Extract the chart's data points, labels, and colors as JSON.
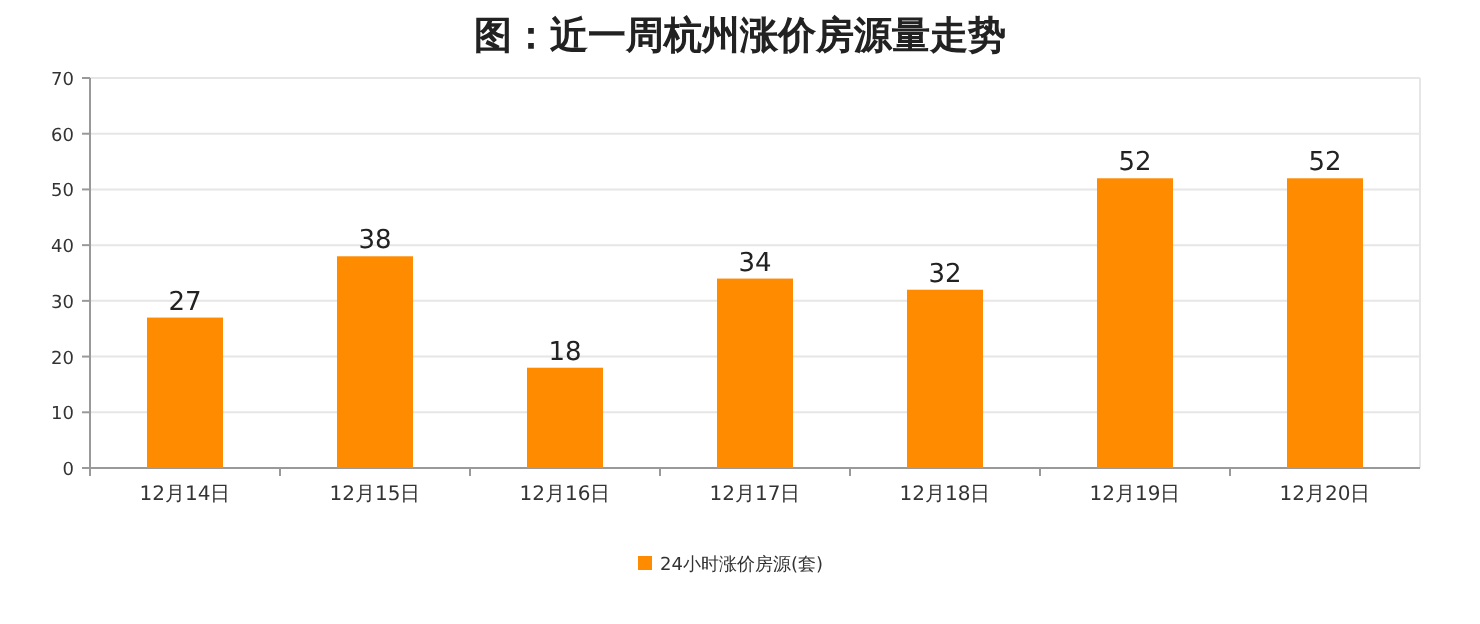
{
  "chart_data": {
    "type": "bar",
    "title": "图：近一周杭州涨价房源量走势",
    "categories": [
      "12月14日",
      "12月15日",
      "12月16日",
      "12月17日",
      "12月18日",
      "12月19日",
      "12月20日"
    ],
    "series": [
      {
        "name": "24小时涨价房源(套)",
        "color": "#ff8c00",
        "values": [
          27,
          38,
          18,
          34,
          32,
          52,
          52
        ]
      }
    ],
    "ylim": [
      0,
      70
    ],
    "yticks": [
      0,
      10,
      20,
      30,
      40,
      50,
      60,
      70
    ],
    "grid": "y",
    "legend": "bottom",
    "data_labels": true
  }
}
